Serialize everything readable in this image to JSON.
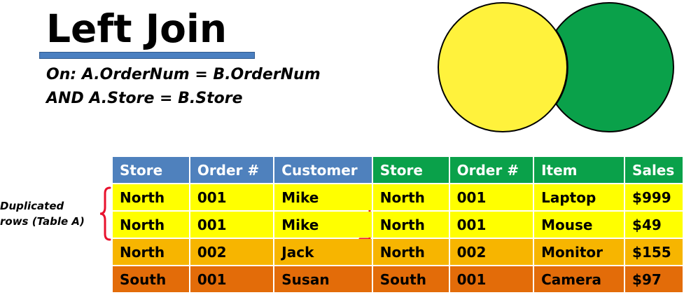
{
  "title": "Left Join",
  "condition": {
    "line1": "On: A.OrderNum = B.OrderNum",
    "line2": "AND A.Store = B.Store"
  },
  "annotation": {
    "line1": "Duplicated",
    "line2": "rows (Table A)"
  },
  "colors": {
    "table_a_header": "#4f81bd",
    "table_b_header": "#0aa14a",
    "circle_a": "#fff23c",
    "circle_b": "#0aa14a",
    "row_yellow": "#ffff00",
    "row_amber": "#f7b500",
    "row_orange": "#e36c09",
    "bracket": "#e8112d"
  },
  "table": {
    "headers": [
      "Store",
      "Order #",
      "Customer",
      "Store",
      "Order #",
      "Item",
      "Sales"
    ],
    "rows": [
      [
        "North",
        "001",
        "Mike",
        "North",
        "001",
        "Laptop",
        "$999"
      ],
      [
        "North",
        "001",
        "Mike",
        "North",
        "001",
        "Mouse",
        "$49"
      ],
      [
        "North",
        "002",
        "Jack",
        "North",
        "002",
        "Monitor",
        "$155"
      ],
      [
        "South",
        "001",
        "Susan",
        "South",
        "001",
        "Camera",
        "$97"
      ]
    ]
  }
}
